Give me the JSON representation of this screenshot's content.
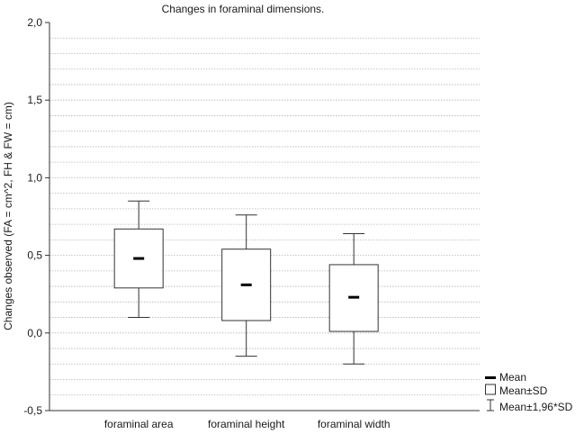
{
  "chart_data": {
    "type": "boxplot",
    "title": "Changes in foraminal dimensions.",
    "xlabel": "",
    "ylabel": "Changes observed (FA = cm^2, FH & FW = cm)",
    "ylim": [
      -0.5,
      2.0
    ],
    "yticks": [
      -0.5,
      0.0,
      0.5,
      1.0,
      1.5,
      2.0
    ],
    "ytick_labels": [
      "-0,5",
      "0,0",
      "0,5",
      "1,0",
      "1,5",
      "2,0"
    ],
    "minor_grid_step": 0.1,
    "grid": true,
    "legend_position": "bottom-right",
    "categories": [
      "foraminal area",
      "foraminal height",
      "foraminal width"
    ],
    "series": [
      {
        "category": "foraminal area",
        "mean": 0.48,
        "sd_low": 0.29,
        "sd_high": 0.67,
        "ci_low": 0.1,
        "ci_high": 0.85
      },
      {
        "category": "foraminal height",
        "mean": 0.31,
        "sd_low": 0.08,
        "sd_high": 0.54,
        "ci_low": -0.15,
        "ci_high": 0.76
      },
      {
        "category": "foraminal width",
        "mean": 0.23,
        "sd_low": 0.01,
        "sd_high": 0.44,
        "ci_low": -0.2,
        "ci_high": 0.64
      }
    ],
    "legend": [
      {
        "symbol": "mean",
        "label": "Mean"
      },
      {
        "symbol": "box",
        "label": "Mean±SD"
      },
      {
        "symbol": "whisker",
        "label": "Mean±1,96*SD"
      }
    ]
  }
}
